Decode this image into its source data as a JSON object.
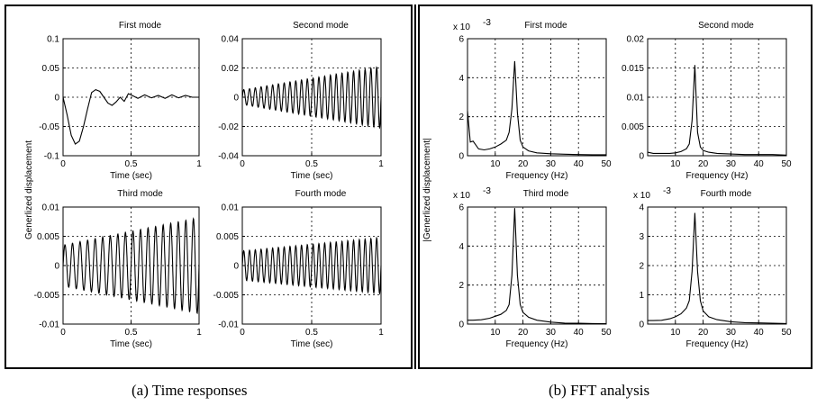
{
  "panels": [
    {
      "ylabel": "Generlized displacement",
      "caption": "(a) Time responses",
      "subplots": [
        {
          "title": "First mode",
          "xlabel": "Time (sec)",
          "xlim": [
            0,
            1
          ],
          "ylim": [
            -0.1,
            0.1
          ],
          "xticks": [
            "0",
            "0.5",
            "1"
          ],
          "yticks": [
            "-0.1",
            "-0.05",
            "0",
            "0.05",
            "0.1"
          ],
          "exponent": ""
        },
        {
          "title": "Second mode",
          "xlabel": "Time (sec)",
          "xlim": [
            0,
            1
          ],
          "ylim": [
            -0.04,
            0.04
          ],
          "xticks": [
            "0",
            "0.5",
            "1"
          ],
          "yticks": [
            "-0.04",
            "-0.02",
            "0",
            "0.02",
            "0.04"
          ],
          "exponent": ""
        },
        {
          "title": "Third mode",
          "xlabel": "Time (sec)",
          "xlim": [
            0,
            1
          ],
          "ylim": [
            -0.01,
            0.01
          ],
          "xticks": [
            "0",
            "0.5",
            "1"
          ],
          "yticks": [
            "-0.01",
            "-0.005",
            "0",
            "0.005",
            "0.01"
          ],
          "exponent": ""
        },
        {
          "title": "Fourth mode",
          "xlabel": "Time (sec)",
          "xlim": [
            0,
            1
          ],
          "ylim": [
            -0.01,
            0.01
          ],
          "xticks": [
            "0",
            "0.5",
            "1"
          ],
          "yticks": [
            "-0.01",
            "-0.005",
            "0",
            "0.005",
            "0.01"
          ],
          "exponent": ""
        }
      ]
    },
    {
      "ylabel": "|Generlized displacement|",
      "caption": "(b) FFT analysis",
      "subplots": [
        {
          "title": "First mode",
          "xlabel": "Frequency (Hz)",
          "xlim": [
            0,
            50
          ],
          "ylim": [
            0,
            6
          ],
          "xticks": [
            "10",
            "20",
            "30",
            "40",
            "50"
          ],
          "yticks": [
            "0",
            "2",
            "4",
            "6"
          ],
          "exponent": "x 10",
          "exponent_power": "-3"
        },
        {
          "title": "Second mode",
          "xlabel": "Frequency (Hz)",
          "xlim": [
            0,
            50
          ],
          "ylim": [
            0,
            0.02
          ],
          "xticks": [
            "10",
            "20",
            "30",
            "40",
            "50"
          ],
          "yticks": [
            "0",
            "0.005",
            "0.01",
            "0.015",
            "0.02"
          ],
          "exponent": ""
        },
        {
          "title": "Third mode",
          "xlabel": "Frequency (Hz)",
          "xlim": [
            0,
            50
          ],
          "ylim": [
            0,
            6
          ],
          "xticks": [
            "10",
            "20",
            "30",
            "40",
            "50"
          ],
          "yticks": [
            "0",
            "2",
            "4",
            "6"
          ],
          "exponent": "x 10",
          "exponent_power": "-3"
        },
        {
          "title": "Fourth mode",
          "xlabel": "Frequency (Hz)",
          "xlim": [
            0,
            50
          ],
          "ylim": [
            0,
            4
          ],
          "xticks": [
            "10",
            "20",
            "30",
            "40",
            "50"
          ],
          "yticks": [
            "0",
            "1",
            "2",
            "3",
            "4"
          ],
          "exponent": "x 10",
          "exponent_power": "-3"
        }
      ]
    }
  ],
  "chart_data": [
    {
      "type": "line",
      "title": "First mode",
      "xlabel": "Time (sec)",
      "ylabel": "Generlized displacement",
      "xlim": [
        0,
        1
      ],
      "ylim": [
        -0.1,
        0.1
      ],
      "grid": true,
      "x": [
        0,
        0.03,
        0.06,
        0.09,
        0.12,
        0.15,
        0.18,
        0.21,
        0.24,
        0.27,
        0.3,
        0.33,
        0.36,
        0.39,
        0.42,
        0.45,
        0.48,
        0.5,
        0.55,
        0.6,
        0.65,
        0.7,
        0.75,
        0.8,
        0.85,
        0.9,
        0.95,
        1.0
      ],
      "y": [
        0,
        -0.03,
        -0.065,
        -0.08,
        -0.075,
        -0.05,
        -0.02,
        0.008,
        0.013,
        0.01,
        0.0,
        -0.01,
        -0.014,
        -0.008,
        0.0,
        -0.007,
        0.006,
        0.004,
        -0.002,
        0.004,
        -0.001,
        0.003,
        -0.002,
        0.004,
        -0.001,
        0.003,
        0.0,
        0.0
      ]
    },
    {
      "type": "line",
      "title": "Second mode",
      "xlabel": "Time (sec)",
      "xlim": [
        0,
        1
      ],
      "ylim": [
        -0.04,
        0.04
      ],
      "grid": true,
      "oscillation": {
        "cycles": 24,
        "amplitude_start": 0.005,
        "amplitude_end": 0.021
      }
    },
    {
      "type": "line",
      "title": "Third mode",
      "xlabel": "Time (sec)",
      "xlim": [
        0,
        1
      ],
      "ylim": [
        -0.01,
        0.01
      ],
      "grid": true,
      "oscillation": {
        "cycles": 18,
        "amplitude_start": 0.0035,
        "amplitude_end": 0.0082
      }
    },
    {
      "type": "line",
      "title": "Fourth mode",
      "xlabel": "Time (sec)",
      "xlim": [
        0,
        1
      ],
      "ylim": [
        -0.01,
        0.01
      ],
      "grid": true,
      "oscillation": {
        "cycles": 24,
        "amplitude_start": 0.0025,
        "amplitude_end": 0.0048
      }
    },
    {
      "type": "line",
      "title": "First mode",
      "xlabel": "Frequency (Hz)",
      "ylabel": "|Generlized displacement|",
      "xlim": [
        0,
        50
      ],
      "ylim": [
        0,
        6
      ],
      "y_multiplier": "x 10^-3",
      "grid": true,
      "x": [
        0,
        1,
        2,
        4,
        6,
        8,
        10,
        12,
        14,
        15,
        16,
        17,
        18,
        19,
        20,
        22,
        25,
        30,
        35,
        40,
        45,
        50
      ],
      "y": [
        2.3,
        0.7,
        0.75,
        0.35,
        0.3,
        0.35,
        0.45,
        0.6,
        0.8,
        1.2,
        2.4,
        4.85,
        2.2,
        0.8,
        0.45,
        0.25,
        0.15,
        0.1,
        0.08,
        0.06,
        0.05,
        0.05
      ]
    },
    {
      "type": "line",
      "title": "Second mode",
      "xlabel": "Frequency (Hz)",
      "xlim": [
        0,
        50
      ],
      "ylim": [
        0,
        0.02
      ],
      "grid": true,
      "x": [
        0,
        2,
        5,
        8,
        10,
        12,
        14,
        15,
        16,
        17,
        18,
        19,
        20,
        22,
        25,
        30,
        35,
        40,
        45,
        50
      ],
      "y": [
        0.0006,
        0.0004,
        0.0004,
        0.0004,
        0.0005,
        0.0007,
        0.0012,
        0.002,
        0.006,
        0.0155,
        0.004,
        0.0015,
        0.0009,
        0.0006,
        0.0004,
        0.0003,
        0.0002,
        0.0002,
        0.0002,
        0.0001
      ]
    },
    {
      "type": "line",
      "title": "Third mode",
      "xlabel": "Frequency (Hz)",
      "xlim": [
        0,
        50
      ],
      "ylim": [
        0,
        6
      ],
      "y_multiplier": "x 10^-3",
      "grid": true,
      "x": [
        0,
        2,
        5,
        8,
        10,
        12,
        14,
        15,
        16,
        17,
        18,
        19,
        20,
        22,
        25,
        30,
        35,
        40,
        45,
        50
      ],
      "y": [
        0.2,
        0.2,
        0.22,
        0.3,
        0.4,
        0.5,
        0.7,
        1.0,
        2.5,
        5.95,
        2.5,
        1.0,
        0.6,
        0.35,
        0.2,
        0.1,
        0.05,
        0.04,
        0.03,
        0.02
      ]
    },
    {
      "type": "line",
      "title": "Fourth mode",
      "xlabel": "Frequency (Hz)",
      "xlim": [
        0,
        50
      ],
      "ylim": [
        0,
        4
      ],
      "y_multiplier": "x 10^-3",
      "grid": true,
      "x": [
        0,
        2,
        5,
        8,
        10,
        12,
        14,
        15,
        16,
        17,
        18,
        19,
        20,
        22,
        25,
        30,
        35,
        40,
        45,
        50
      ],
      "y": [
        0.12,
        0.12,
        0.13,
        0.18,
        0.25,
        0.35,
        0.55,
        0.8,
        1.8,
        3.8,
        1.8,
        0.8,
        0.45,
        0.25,
        0.15,
        0.08,
        0.05,
        0.04,
        0.03,
        0.02
      ]
    }
  ]
}
